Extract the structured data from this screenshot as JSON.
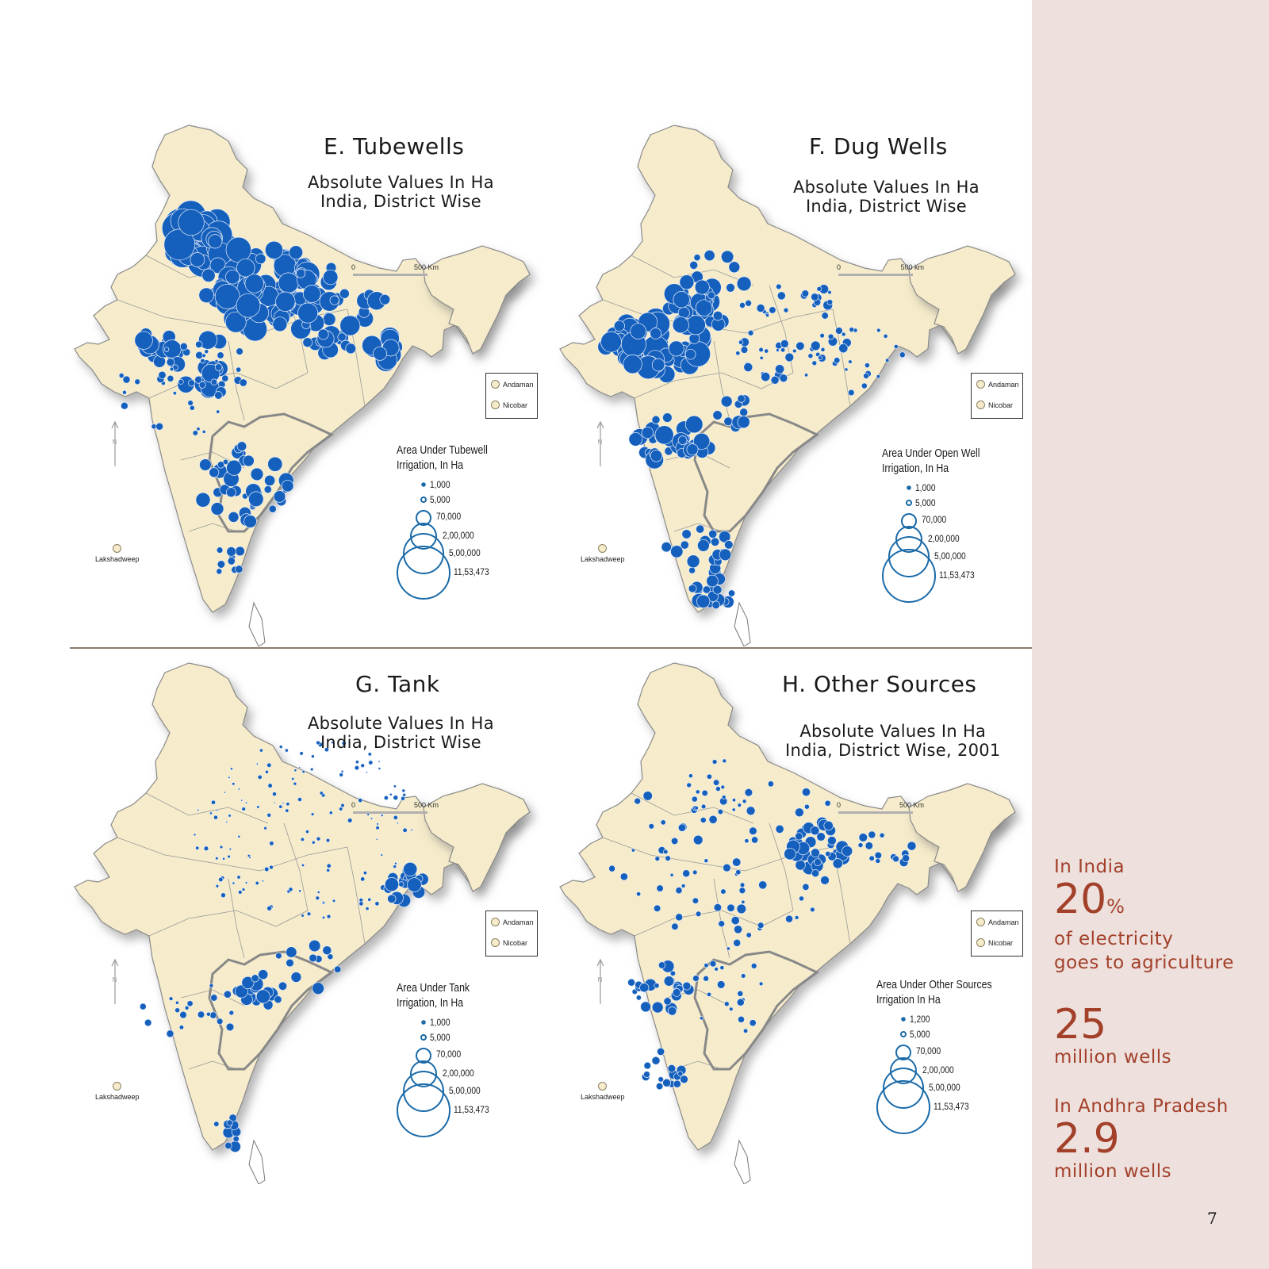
{
  "page": {
    "page_number": "7",
    "accent_color": "#a3402a",
    "sidebar_bg": "#ede0dd",
    "map_fill": "#f6eccb",
    "bubble_color": "#1565c0"
  },
  "panels": [
    {
      "id": "E",
      "title": "E. Tubewells",
      "subtitle_line1": "Absolute Values In Ha",
      "subtitle_line2": "India, District Wise",
      "scale_zero": "0",
      "scale_end": "500 Km",
      "inset_labels": [
        "Andaman",
        "Nicobar"
      ],
      "lakshadweep": "Lakshadweep",
      "north": "N",
      "legend_title_line1": "Area Under Tubewell",
      "legend_title_line2": "Irrigation, In Ha",
      "legend_values": [
        "1,000",
        "5,000",
        "70,000",
        "2,00,000",
        "5,00,000",
        "11,53,473"
      ]
    },
    {
      "id": "F",
      "title": "F. Dug Wells",
      "subtitle_line1": "Absolute Values In Ha",
      "subtitle_line2": "India, District Wise",
      "scale_zero": "0",
      "scale_end": "500 km",
      "inset_labels": [
        "Andaman",
        "Nicobar"
      ],
      "lakshadweep": "Lakshadweep",
      "north": "N",
      "legend_title_line1": "Area Under Open Well",
      "legend_title_line2": "Irrigation, In Ha",
      "legend_values": [
        "1,000",
        "5,000",
        "70,000",
        "2,00,000",
        "5,00,000",
        "11,53,473"
      ]
    },
    {
      "id": "G",
      "title": "G. Tank",
      "subtitle_line1": "Absolute Values In Ha",
      "subtitle_line2": "India, District Wise",
      "scale_zero": "0",
      "scale_end": "500 Km",
      "inset_labels": [
        "Andaman",
        "Nicobar"
      ],
      "lakshadweep": "Lakshadweep",
      "north": "N",
      "legend_title_line1": "Area Under Tank",
      "legend_title_line2": "Irrigation, In Ha",
      "legend_values": [
        "1,000",
        "5,000",
        "70,000",
        "2,00,000",
        "5,00,000",
        "11,53,473"
      ]
    },
    {
      "id": "H",
      "title": "H. Other Sources",
      "subtitle_line1": "Absolute Values In Ha",
      "subtitle_line2": "India, District Wise, 2001",
      "scale_zero": "0",
      "scale_end": "500 Km",
      "inset_labels": [
        "Andaman",
        "Nicobar"
      ],
      "lakshadweep": "Lakshadweep",
      "north": "N",
      "legend_title_line1": "Area Under Other Sources",
      "legend_title_line2": "Irrigation In Ha",
      "legend_values": [
        "1,200",
        "5,000",
        "70,000",
        "2,00,000",
        "5,00,000",
        "11,53,473"
      ]
    }
  ],
  "sidebar": {
    "stat1_label": "In India",
    "stat1_value": "20",
    "stat1_unit": "%",
    "stat1_desc_line1": "of electricity",
    "stat1_desc_line2": "goes to agriculture",
    "stat2_value": "25",
    "stat2_desc": "million wells",
    "stat3_label": "In Andhra Pradesh",
    "stat3_value": "2.9",
    "stat3_desc": "million wells"
  }
}
